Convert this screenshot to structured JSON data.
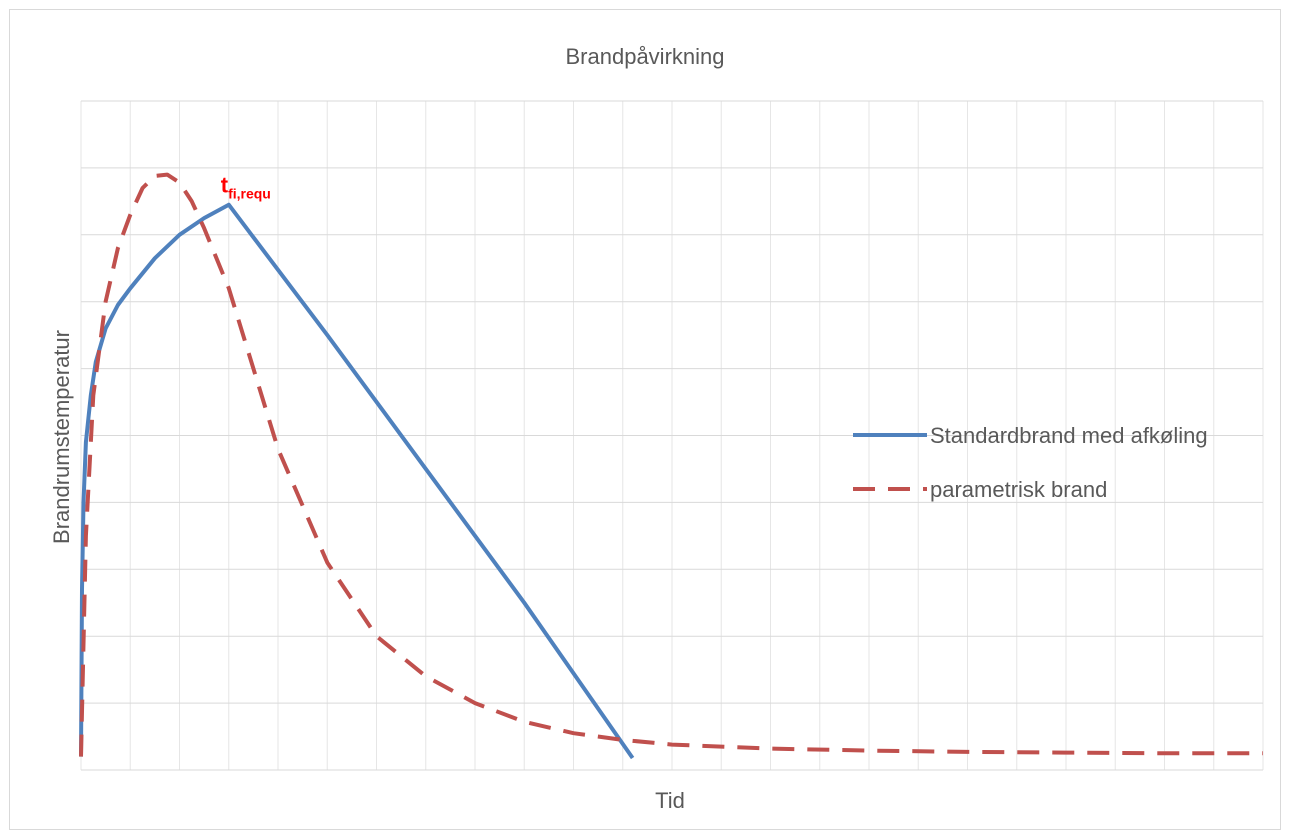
{
  "chart_data": {
    "type": "line",
    "title": "Brandpåvirkning",
    "xlabel": "Tid",
    "ylabel": "Brandrumstemperatur",
    "xlim": [
      0,
      24
    ],
    "ylim": [
      0,
      1000
    ],
    "grid": true,
    "tick_labels_shown": false,
    "legend_position": "right",
    "annotation": {
      "text": "t",
      "subscript": "fi,requ",
      "x": 3.0,
      "y": 845,
      "color": "#ff0000"
    },
    "series": [
      {
        "name": "Standardbrand med afkøling",
        "color": "#4f81bd",
        "dash": "solid",
        "x": [
          0,
          0.02,
          0.05,
          0.1,
          0.2,
          0.3,
          0.5,
          0.75,
          1.0,
          1.5,
          2.0,
          2.5,
          3.0,
          5.0,
          7.0,
          9.0,
          11.2
        ],
        "y": [
          20,
          270,
          400,
          490,
          560,
          610,
          660,
          695,
          720,
          765,
          800,
          825,
          845,
          650,
          450,
          250,
          18
        ]
      },
      {
        "name": "parametrisk brand",
        "color": "#c0504d",
        "dash": "dashed",
        "x": [
          0,
          0.1,
          0.25,
          0.5,
          0.75,
          1.0,
          1.25,
          1.5,
          1.75,
          2.0,
          2.25,
          2.5,
          3.0,
          3.5,
          4.0,
          5.0,
          6.0,
          7.0,
          8.0,
          9.0,
          10.0,
          11.0,
          12.0,
          14.0,
          16.0,
          18.0,
          20.0,
          22.0,
          24.0
        ],
        "y": [
          20,
          350,
          560,
          700,
          780,
          830,
          870,
          888,
          890,
          878,
          850,
          810,
          720,
          600,
          480,
          310,
          200,
          140,
          100,
          72,
          55,
          45,
          38,
          32,
          29,
          27,
          26,
          25,
          25
        ]
      }
    ]
  }
}
